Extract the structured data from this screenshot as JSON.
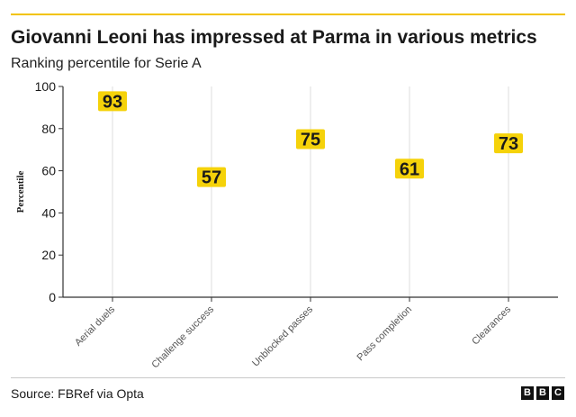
{
  "header": {
    "title": "Giovanni Leoni has impressed at Parma in various metrics",
    "subtitle": "Ranking percentile for Serie A"
  },
  "footer": {
    "source": "Source: FBRef via Opta",
    "logo": [
      "B",
      "B",
      "C"
    ]
  },
  "colors": {
    "accent": "#f2c300",
    "label_bg": "#f5d20a",
    "axis": "#333333",
    "grid": "#dddddd"
  },
  "chart_data": {
    "type": "scatter",
    "title": "Giovanni Leoni has impressed at Parma in various metrics",
    "subtitle": "Ranking percentile for Serie A",
    "xlabel": "",
    "ylabel": "Percentile",
    "categories": [
      "Aerial duels",
      "Challenge success",
      "Unblocked passes",
      "Pass completion",
      "Clearances"
    ],
    "values": [
      93,
      57,
      75,
      61,
      73
    ],
    "data_labels": [
      "93",
      "57",
      "75",
      "61",
      "73"
    ],
    "ylim": [
      0,
      100
    ],
    "yticks": [
      0,
      20,
      40,
      60,
      80,
      100
    ],
    "ytick_labels": [
      "0",
      "20",
      "40",
      "60",
      "80",
      "100"
    ],
    "grid": "vertical"
  }
}
